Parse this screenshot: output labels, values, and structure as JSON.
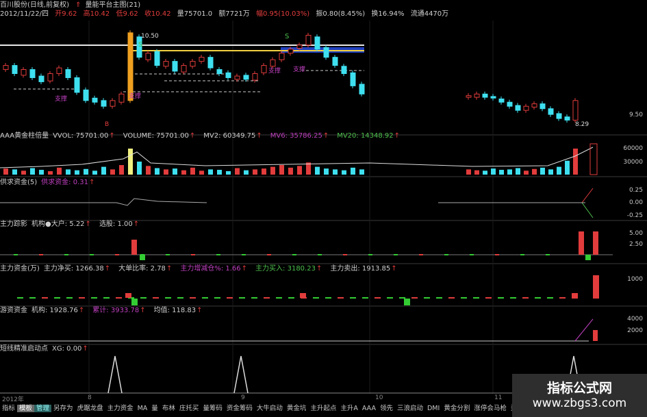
{
  "header": {
    "title": "百川股份(日线,前复权)",
    "formula": "量能平台主图(21)",
    "date": "2012/11/22/四",
    "open": "开9.62",
    "high": "高10.42",
    "low": "低9.62",
    "close": "收10.42",
    "volume": "量75701.0",
    "amount": "额7721万",
    "change": "幅0.95(10.03%)",
    "amplitude": "振0.80(8.45%)",
    "turnover": "换16.94%",
    "float": "流通4470万"
  },
  "main": {
    "marks": {
      "high_label": "10.50",
      "low_label": "8.29",
      "support": "支撑",
      "sell": "S",
      "buy": "B"
    },
    "axis": [
      "9.50"
    ]
  },
  "panels": {
    "volume": {
      "name": "AAA黄金柱倍量",
      "items": [
        {
          "t": "VVOL: 75701.00",
          "c": "w"
        },
        {
          "t": "VOLUME: 75701.00",
          "c": "w"
        },
        {
          "t": "MV2: 60349.75",
          "c": "w"
        },
        {
          "t": "MV6: 35786.25",
          "c": "m"
        },
        {
          "t": "MV20: 14348.92",
          "c": "g"
        }
      ],
      "axis": [
        "60000",
        "30000"
      ]
    },
    "supply": {
      "name": "供求资金(5)",
      "items": [
        {
          "t": "供求资金: 0.31",
          "c": "m"
        }
      ],
      "axis": [
        "0.25",
        "0.00",
        "-0.25"
      ]
    },
    "trace": {
      "name": "主力踪影",
      "items": [
        {
          "t": "机构●大户: 5.22",
          "c": "w"
        },
        {
          "t": "选股: 1.00",
          "c": "w"
        }
      ],
      "axis": [
        "5.00",
        "2.50"
      ]
    },
    "main_funds": {
      "name": "主力资金(万)",
      "items": [
        {
          "t": "主力净买: 1266.38",
          "c": "w"
        },
        {
          "t": "大单比率: 2.78",
          "c": "w"
        },
        {
          "t": "主力增减仓%: 1.66",
          "c": "m"
        },
        {
          "t": "主力买入: 3180.23",
          "c": "g"
        },
        {
          "t": "主力卖出: 1913.85",
          "c": "w"
        }
      ],
      "axis": [
        "1000"
      ]
    },
    "hot_money": {
      "name": "游资资金",
      "items": [
        {
          "t": "机构: 1928.76",
          "c": "w"
        },
        {
          "t": "累计: 3933.78",
          "c": "m"
        },
        {
          "t": "均值: 118.83",
          "c": "w"
        }
      ],
      "axis": [
        "4000",
        "2000"
      ]
    },
    "signal": {
      "name": "短线精准启动点",
      "items": [
        {
          "t": "XG: 0.00",
          "c": "w"
        }
      ]
    }
  },
  "date_axis": [
    "2012年",
    "8",
    "9",
    "10",
    "11"
  ],
  "tabs": [
    "指标",
    "模板",
    "管理",
    "另存为",
    "虎踞龙盘",
    "主力资金",
    "MA",
    "量",
    "布林",
    "庄托买",
    "量筹码",
    "资金筹码",
    "大牛启动",
    "黄金坑",
    "主升起点",
    "主升A",
    "AAA",
    "领先",
    "三浪启动",
    "DMI",
    "黄金分割",
    "涨停会马枪",
    "资"
  ],
  "watermark": {
    "title": "指标公式网",
    "url": "www.zbgs3.com"
  },
  "colors": {
    "up": "#e23c3c",
    "down": "#3ee0f0",
    "limit": "#f0a020",
    "bg": "#000000"
  },
  "chart_data": {
    "type": "candlestick",
    "ylim": [
      9.3,
      10.6
    ],
    "left": {
      "open": [
        10.0,
        10.05,
        9.93,
        10.0,
        9.92,
        9.86,
        9.95,
        10.0,
        9.9,
        9.75,
        9.65,
        9.62,
        9.55,
        9.6,
        9.62,
        10.4,
        10.12,
        10.22,
        10.04,
        10.1,
        9.97,
        10.04,
        10.1,
        10.15,
        10.0,
        9.96,
        9.88,
        9.93,
        9.87,
        9.96,
        10.04,
        10.12,
        10.2,
        10.26,
        10.3,
        10.4,
        10.27,
        10.15,
        10.04,
        9.96,
        9.82
      ],
      "close": [
        10.05,
        9.95,
        10.0,
        9.9,
        9.85,
        9.95,
        10.02,
        9.9,
        9.72,
        9.62,
        9.6,
        9.55,
        9.62,
        9.7,
        10.45,
        10.15,
        10.2,
        10.05,
        10.1,
        9.98,
        10.05,
        10.1,
        10.15,
        10.02,
        9.95,
        9.9,
        9.92,
        9.88,
        9.95,
        10.05,
        10.12,
        10.2,
        10.25,
        10.3,
        10.42,
        10.25,
        10.15,
        10.05,
        9.95,
        9.8,
        9.7
      ],
      "volume": [
        14000,
        12000,
        9000,
        15000,
        11000,
        8000,
        16000,
        12000,
        10000,
        13000,
        9000,
        18000,
        12000,
        22000,
        60000,
        30000,
        20000,
        15000,
        12000,
        14000,
        10000,
        16000,
        9000,
        12000,
        11000,
        8000,
        15000,
        10000,
        12000,
        14000,
        18000,
        22000,
        16000,
        20000,
        28000,
        18000,
        14000,
        12000,
        10000,
        16000,
        12000
      ]
    },
    "right": {
      "open": [
        9.66,
        9.66,
        9.7,
        9.67,
        9.64,
        9.6,
        9.56,
        9.5,
        9.54,
        9.58,
        9.52,
        9.46,
        9.42,
        9.38
      ],
      "close": [
        9.68,
        9.7,
        9.66,
        9.65,
        9.6,
        9.55,
        9.5,
        9.55,
        9.58,
        9.52,
        9.45,
        9.4,
        9.38,
        9.62
      ],
      "volume": [
        12000,
        10000,
        9000,
        14000,
        11000,
        12000,
        15000,
        9000,
        13000,
        16000,
        12000,
        18000,
        32000,
        60000
      ]
    },
    "signals": [
      1,
      1,
      1
    ]
  }
}
